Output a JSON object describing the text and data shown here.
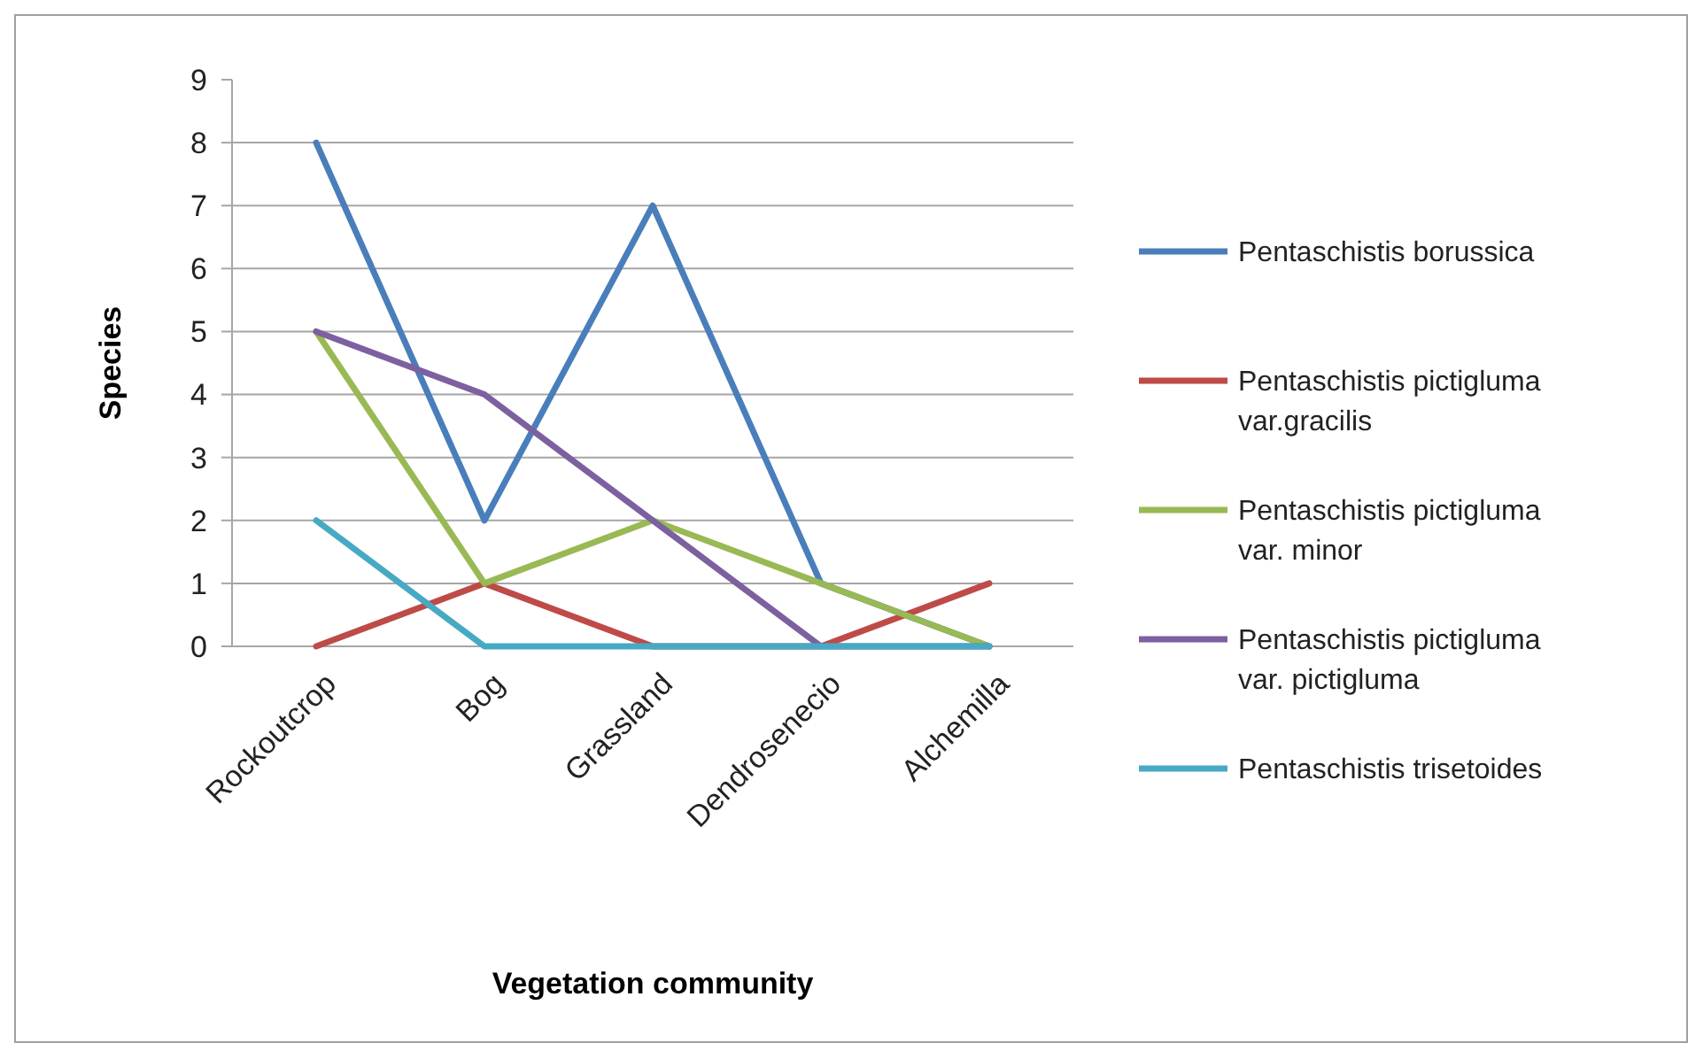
{
  "chart_data": {
    "type": "line",
    "xlabel": "Vegetation community",
    "ylabel": "Species",
    "categories": [
      "Rockoutcrop",
      "Bog",
      "Grassland",
      "Dendrosenecio",
      "Alchemilla"
    ],
    "series": [
      {
        "name": "Pentaschistis borussica",
        "color": "#4a7ebb",
        "values": [
          8,
          2,
          7,
          1,
          0
        ]
      },
      {
        "name": "Pentaschistis  pictigluma var.gracilis",
        "color": "#be4b48",
        "values": [
          0,
          1,
          0,
          0,
          1
        ]
      },
      {
        "name": "Pentaschistis  pictigluma var. minor",
        "color": "#98b954",
        "values": [
          5,
          1,
          2,
          1,
          0
        ]
      },
      {
        "name": "Pentaschistis pictigluma var. pictigluma",
        "color": "#7d60a0",
        "values": [
          5,
          4,
          2,
          0,
          0
        ]
      },
      {
        "name": "Pentaschistis trisetoides",
        "color": "#46aac5",
        "values": [
          2,
          0,
          0,
          0,
          0
        ]
      }
    ],
    "ylim": [
      0,
      9
    ],
    "yticks": [
      0,
      1,
      2,
      3,
      4,
      5,
      6,
      7,
      8,
      9
    ],
    "grid": "y",
    "legend": "right",
    "marker": "none",
    "line_style": "solid"
  }
}
